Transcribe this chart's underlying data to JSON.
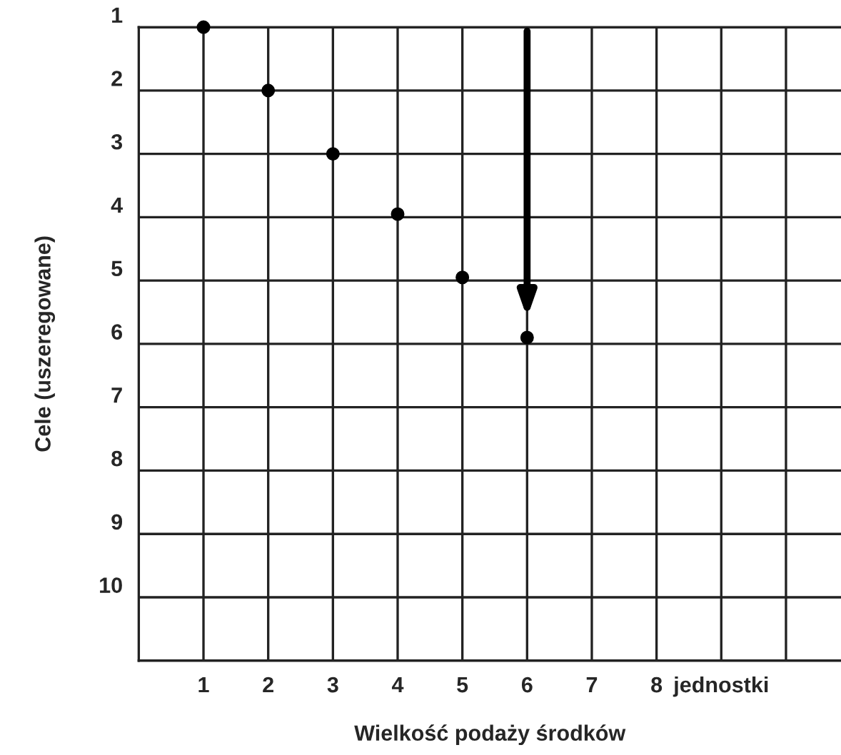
{
  "chart_data": {
    "type": "scatter",
    "xlabel": "Wielkość podaży środków",
    "ylabel": "Cele (uszeregowane)",
    "x": [
      1,
      2,
      3,
      4,
      5,
      6
    ],
    "values": [
      1,
      2,
      3,
      3.95,
      4.95,
      5.9
    ],
    "color": "#000000",
    "marker": "circle",
    "xlim": [
      0,
      10.85
    ],
    "xticks": [
      1,
      2,
      3,
      4,
      5,
      6,
      7,
      8,
      {
        "value": 9,
        "label": "jednostki"
      },
      {
        "value": 10,
        "label": null
      }
    ],
    "ylim": [
      11,
      1
    ],
    "yticks": [
      1,
      2,
      3,
      4,
      5,
      6,
      7,
      8,
      9,
      10
    ],
    "grid": true
  }
}
